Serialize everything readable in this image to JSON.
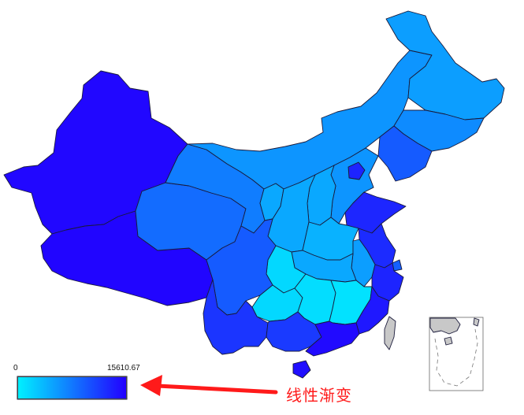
{
  "legend": {
    "min_label": "0",
    "max_label": "15610.67",
    "min_value": 0,
    "max_value": 15610.67,
    "color_low": "#00f0ff",
    "color_high": "#2200ff"
  },
  "annotation": {
    "text": "线性渐变",
    "color": "#ff1a1a"
  },
  "regions": [
    {
      "id": "xinjiang",
      "fraction": 0.97
    },
    {
      "id": "tibet",
      "fraction": 0.98
    },
    {
      "id": "qinghai",
      "fraction": 0.55
    },
    {
      "id": "gansu",
      "fraction": 0.48
    },
    {
      "id": "inner-mongolia",
      "fraction": 0.38
    },
    {
      "id": "heilongjiang",
      "fraction": 0.34
    },
    {
      "id": "jilin",
      "fraction": 0.42
    },
    {
      "id": "liaoning",
      "fraction": 0.62
    },
    {
      "id": "ningxia",
      "fraction": 0.3
    },
    {
      "id": "shaanxi",
      "fraction": 0.3
    },
    {
      "id": "shanxi",
      "fraction": 0.3
    },
    {
      "id": "hebei",
      "fraction": 0.38
    },
    {
      "id": "beijing",
      "fraction": 0.85
    },
    {
      "id": "tianjin",
      "fraction": 0.4
    },
    {
      "id": "shandong",
      "fraction": 0.84
    },
    {
      "id": "henan",
      "fraction": 0.26
    },
    {
      "id": "jiangsu",
      "fraction": 0.82
    },
    {
      "id": "shanghai",
      "fraction": 0.6
    },
    {
      "id": "anhui",
      "fraction": 0.34
    },
    {
      "id": "zhejiang",
      "fraction": 0.85
    },
    {
      "id": "hubei",
      "fraction": 0.3
    },
    {
      "id": "sichuan",
      "fraction": 0.62
    },
    {
      "id": "chongqing",
      "fraction": 0.1
    },
    {
      "id": "hunan",
      "fraction": 0.08
    },
    {
      "id": "jiangxi",
      "fraction": 0.06
    },
    {
      "id": "fujian",
      "fraction": 0.9
    },
    {
      "id": "guizhou",
      "fraction": 0.1
    },
    {
      "id": "yunnan",
      "fraction": 0.78
    },
    {
      "id": "guangxi",
      "fraction": 0.76
    },
    {
      "id": "guangdong",
      "fraction": 0.96
    },
    {
      "id": "hainan",
      "fraction": 0.94
    },
    {
      "id": "taiwan",
      "fraction": null
    },
    {
      "id": "south-china-sea-islands",
      "fraction": null
    }
  ],
  "colors": {
    "no_data": "#c8c8c8",
    "border": "#1a1a3a",
    "arrow": "#ff1a1a"
  }
}
